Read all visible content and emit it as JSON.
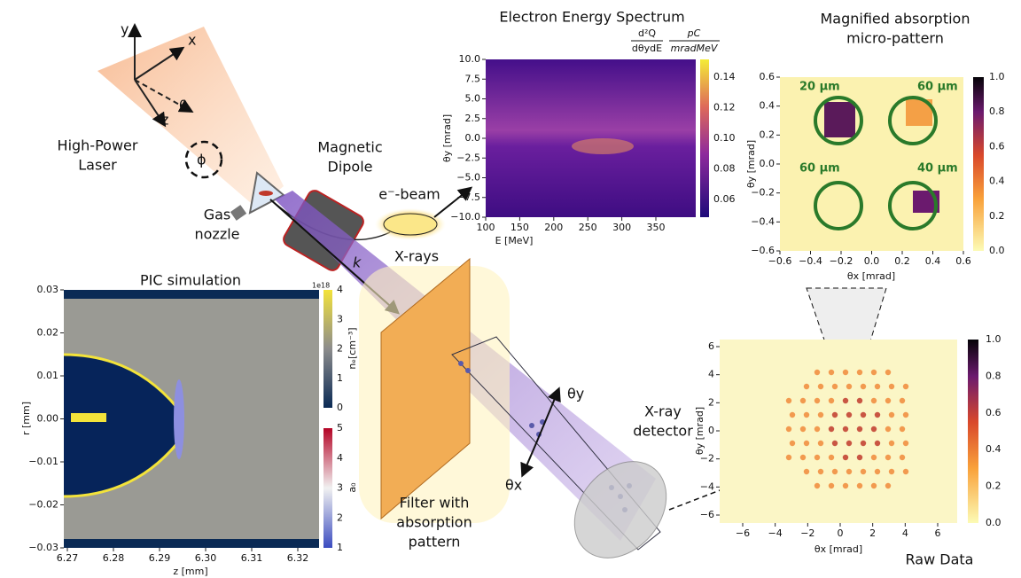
{
  "labels": {
    "axis_y": "y",
    "axis_x": "x",
    "axis_z": "z",
    "theta": "θ",
    "phi": "ϕ",
    "laser": [
      "High-Power",
      "Laser"
    ],
    "dipole": [
      "Magnetic",
      "Dipole"
    ],
    "ebeam": "e⁻-beam",
    "nozzle": [
      "Gas",
      "nozzle"
    ],
    "k": "k",
    "xrays": "X-rays",
    "filter": [
      "Filter with",
      "absorption",
      "pattern"
    ],
    "theta_y": "θy",
    "theta_x": "θx",
    "detector": [
      "X-ray",
      "detector"
    ],
    "raw_data": "Raw Data"
  },
  "spectrum": {
    "title": "Electron Energy Spectrum",
    "colorbar_label": [
      "d²Q",
      "dθydE",
      "pC",
      "mradMeV"
    ],
    "ylabel": "θy [mrad]",
    "xlabel": "E [MeV]",
    "yticks": [
      "10.0",
      "7.5",
      "5.0",
      "2.5",
      "0.0",
      "−2.5",
      "−5.0",
      "−7.5",
      "−10.0"
    ],
    "xticks": [
      "100",
      "150",
      "200",
      "250",
      "300",
      "350"
    ],
    "cbar_ticks": [
      "0.14",
      "0.12",
      "0.10",
      "0.08",
      "0.06"
    ]
  },
  "magnified": {
    "title": [
      "Magnified absorption",
      "micro-pattern"
    ],
    "spots": [
      "20 µm",
      "60 µm",
      "60 µm",
      "40 µm"
    ],
    "ylabel": "θy [mrad]",
    "xlabel": "θx [mrad]",
    "yticks": [
      "0.6",
      "0.4",
      "0.2",
      "0.0",
      "−0.2",
      "−0.4",
      "−0.6"
    ],
    "xticks": [
      "−0.6",
      "−0.4",
      "−0.2",
      "0.0",
      "0.2",
      "0.4",
      "0.6"
    ],
    "cbar_ticks": [
      "1.0",
      "0.8",
      "0.6",
      "0.4",
      "0.2",
      "0.0"
    ]
  },
  "raw": {
    "ylabel": "θy [mrad]",
    "xlabel": "θx [mrad]",
    "yticks": [
      "6",
      "4",
      "2",
      "0",
      "−2",
      "−4",
      "−6"
    ],
    "xticks": [
      "−6",
      "−4",
      "−2",
      "0",
      "2",
      "4",
      "6"
    ],
    "cbar_ticks": [
      "1.0",
      "0.8",
      "0.6",
      "0.4",
      "0.2",
      "0.0"
    ]
  },
  "pic": {
    "title": "PIC simulation",
    "ylabel": "r [mm]",
    "xlabel": "z [mm]",
    "yticks": [
      "0.03",
      "0.02",
      "0.01",
      "0.00",
      "−0.01",
      "−0.02",
      "−0.03"
    ],
    "xticks": [
      "6.27",
      "6.28",
      "6.29",
      "6.30",
      "6.31",
      "6.32"
    ],
    "cbar1_exp": "1e18",
    "cbar1_ticks": [
      "4",
      "3",
      "2",
      "1",
      "0"
    ],
    "cbar1_label": "nₑ[cm⁻³]",
    "cbar2_ticks": [
      "5",
      "4",
      "3",
      "2",
      "1"
    ],
    "cbar2_label": "a₀"
  }
}
